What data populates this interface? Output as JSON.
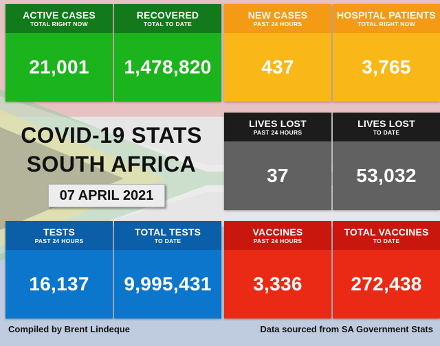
{
  "colors": {
    "green_head": "#127a1a",
    "green_body": "#1cb41c",
    "orange_head": "#f49a14",
    "orange_body": "#f9b817",
    "grey_head": "#1c1c1c",
    "grey_body": "#616161",
    "blue_head": "#0b5ea8",
    "blue_body": "#0c75cc",
    "red_head": "#c9170e",
    "red_body": "#ea2a15"
  },
  "cards": {
    "active_cases": {
      "title": "ACTIVE CASES",
      "sub": "TOTAL RIGHT NOW",
      "value": "21,001"
    },
    "recovered": {
      "title": "RECOVERED",
      "sub": "TOTAL TO DATE",
      "value": "1,478,820"
    },
    "new_cases": {
      "title": "NEW CASES",
      "sub": "PAST 24 HOURS",
      "value": "437"
    },
    "hospital_patients": {
      "title": "HOSPITAL PATIENTS",
      "sub": "TOTAL RIGHT NOW",
      "value": "3,765"
    },
    "lives_lost_24h": {
      "title": "LIVES LOST",
      "sub": "PAST 24 HOURS",
      "value": "37"
    },
    "lives_lost_total": {
      "title": "LIVES LOST",
      "sub": "TO DATE",
      "value": "53,032"
    },
    "tests_24h": {
      "title": "TESTS",
      "sub": "PAST 24 HOURS",
      "value": "16,137"
    },
    "total_tests": {
      "title": "TOTAL TESTS",
      "sub": "TO DATE",
      "value": "9,995,431"
    },
    "vaccines_24h": {
      "title": "VACCINES",
      "sub": "PAST 24 HOURS",
      "value": "3,336"
    },
    "total_vaccines": {
      "title": "TOTAL VACCINES",
      "sub": "TO DATE",
      "value": "272,438"
    }
  },
  "headline": {
    "line1": "COVID-19 STATS",
    "line2": "SOUTH AFRICA"
  },
  "date": "07 APRIL 2021",
  "footer": {
    "left": "Compiled by Brent Lindeque",
    "right": "Data sourced from SA Government Stats"
  }
}
